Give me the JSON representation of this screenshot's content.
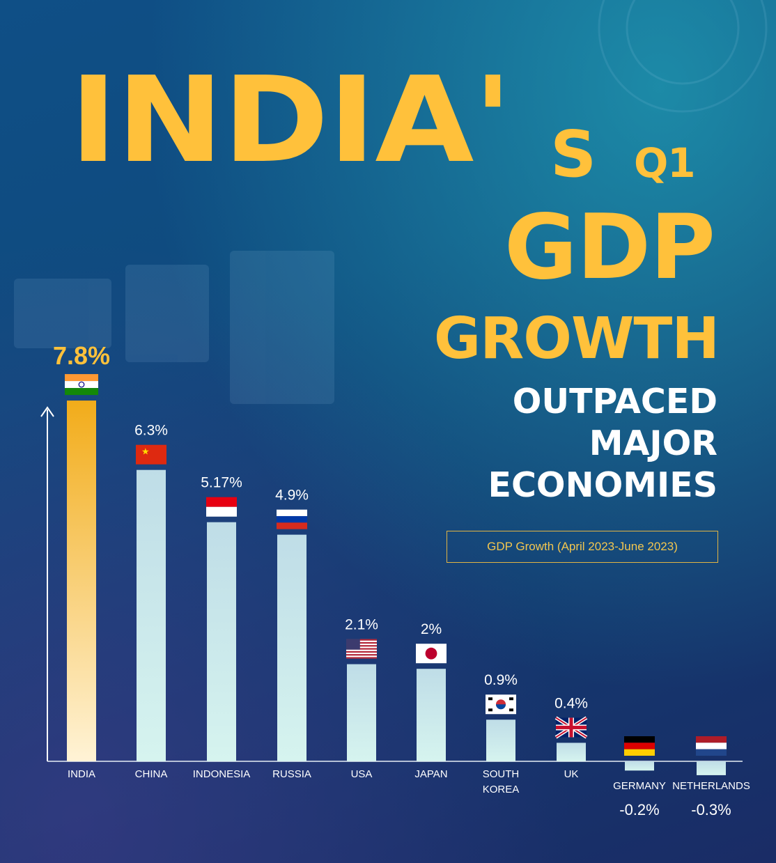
{
  "title": {
    "part1": "INDIA'",
    "part2": "S",
    "part3": "Q1",
    "line2": "GDP",
    "line3": "GROWTH"
  },
  "subtitle": {
    "line1": "OUTPACED",
    "line2": "MAJOR",
    "line3": "ECONOMIES"
  },
  "colors": {
    "title": "#ffc13b",
    "india_bar_top": "#f2ac1a",
    "india_bar_bottom": "#fff3d6",
    "bar_top": "#bfdde7",
    "bar_bottom": "#d6f4ef"
  },
  "chart_data": {
    "type": "bar",
    "legend": "GDP Growth (April 2023-June 2023)",
    "categories": [
      "INDIA",
      "CHINA",
      "INDONESIA",
      "RUSSIA",
      "USA",
      "JAPAN",
      "SOUTH KOREA",
      "UK",
      "GERMANY",
      "NETHERLANDS"
    ],
    "value_labels": [
      "7.8%",
      "6.3%",
      "5.17%",
      "4.9%",
      "2.1%",
      "2%",
      "0.9%",
      "0.4%",
      "-0.2%",
      "-0.3%"
    ],
    "flag_icons": [
      "india-flag-icon",
      "china-flag-icon",
      "indonesia-flag-icon",
      "russia-flag-icon",
      "usa-flag-icon",
      "japan-flag-icon",
      "south-korea-flag-icon",
      "uk-flag-icon",
      "germany-flag-icon",
      "netherlands-flag-icon"
    ],
    "series": [
      {
        "values": [
          7.8,
          6.3,
          5.17,
          4.9,
          2.1,
          2.0,
          0.9,
          0.4,
          -0.2,
          -0.3
        ]
      }
    ],
    "grid": false
  }
}
